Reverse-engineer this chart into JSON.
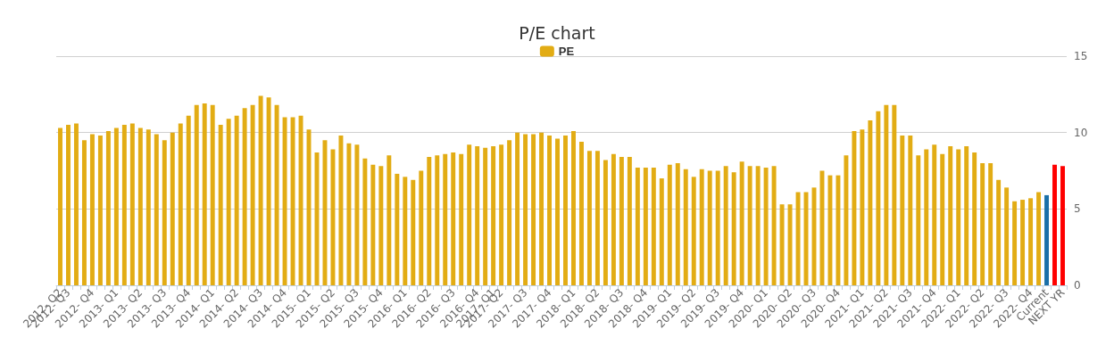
{
  "chart_data": {
    "type": "bar",
    "title": "P/E chart",
    "categories": [
      "2012- Q2",
      "2012- Q3",
      null,
      null,
      "2012- Q4",
      null,
      null,
      "2013- Q1",
      null,
      null,
      "2013- Q2",
      null,
      null,
      "2013- Q3",
      null,
      null,
      "2013- Q4",
      null,
      null,
      "2014- Q1",
      null,
      null,
      "2014- Q2",
      null,
      null,
      "2014- Q3",
      null,
      null,
      "2014- Q4",
      null,
      null,
      "2015- Q1",
      null,
      null,
      "2015- Q2",
      null,
      null,
      "2015- Q3",
      null,
      null,
      "2015- Q4",
      null,
      null,
      "2016- Q1",
      null,
      null,
      "2016- Q2",
      null,
      null,
      "2016- Q3",
      null,
      null,
      "2016- Q4",
      null,
      "2017- Q1",
      "2017- Q2",
      null,
      null,
      "2017- Q3",
      null,
      null,
      "2017- Q4",
      null,
      null,
      "2018- Q1",
      null,
      null,
      "2018- Q2",
      null,
      null,
      "2018- Q3",
      null,
      null,
      "2018- Q4",
      null,
      null,
      "2019- Q1",
      null,
      null,
      "2019- Q2",
      null,
      null,
      "2019- Q3",
      null,
      null,
      "2019- Q4",
      null,
      null,
      "2020- Q1",
      null,
      null,
      "2020- Q2",
      null,
      null,
      "2020- Q3",
      null,
      null,
      "2020- Q4",
      null,
      null,
      "2021- Q1",
      null,
      null,
      "2021- Q2",
      null,
      null,
      "2021- Q3",
      null,
      null,
      "2021- Q4",
      null,
      null,
      "2022- Q1",
      null,
      null,
      "2022- Q2",
      null,
      null,
      "2022- Q3",
      null,
      null,
      "2022- Q4",
      null,
      "Current",
      null,
      "NEXT YR"
    ],
    "series": [
      {
        "name": "PE",
        "color": "#e2ac14",
        "values": [
          10.3,
          10.5,
          10.6,
          9.5,
          9.9,
          9.8,
          10.1,
          10.3,
          10.5,
          10.6,
          10.3,
          10.2,
          9.9,
          9.5,
          10.0,
          10.6,
          11.1,
          11.8,
          11.9,
          11.8,
          10.5,
          10.9,
          11.1,
          11.6,
          11.8,
          12.4,
          12.3,
          11.8,
          11.0,
          11.0,
          11.1,
          10.2,
          8.7,
          9.5,
          8.9,
          9.8,
          9.3,
          9.2,
          8.3,
          7.9,
          7.8,
          8.5,
          7.3,
          7.1,
          6.9,
          7.5,
          8.4,
          8.5,
          8.6,
          8.7,
          8.6,
          9.2,
          9.1,
          9.0,
          9.1,
          9.2,
          9.5,
          10.0,
          9.9,
          9.9,
          10.0,
          9.8,
          9.6,
          9.8,
          10.1,
          9.4,
          8.8,
          8.8,
          8.2,
          8.6,
          8.4,
          8.4,
          7.7,
          7.7,
          7.7,
          7.0,
          7.9,
          8.0,
          7.6,
          7.1,
          7.6,
          7.5,
          7.5,
          7.8,
          7.4,
          8.1,
          7.8,
          7.8,
          7.7,
          7.8,
          5.3,
          5.3,
          6.1,
          6.1,
          6.4,
          7.5,
          7.2,
          7.2,
          8.5,
          10.1,
          10.2,
          10.8,
          11.4,
          11.8,
          11.8,
          9.8,
          9.8,
          8.5,
          8.9,
          9.2,
          8.6,
          9.1,
          8.9,
          9.1,
          8.7,
          8.0,
          8.0,
          6.9,
          6.4,
          5.5,
          5.6,
          5.7,
          6.1,
          5.9,
          7.9,
          7.8
        ],
        "colors": [
          "#e2ac14",
          "#e2ac14",
          "#e2ac14",
          "#e2ac14",
          "#e2ac14",
          "#e2ac14",
          "#e2ac14",
          "#e2ac14",
          "#e2ac14",
          "#e2ac14",
          "#e2ac14",
          "#e2ac14",
          "#e2ac14",
          "#e2ac14",
          "#e2ac14",
          "#e2ac14",
          "#e2ac14",
          "#e2ac14",
          "#e2ac14",
          "#e2ac14",
          "#e2ac14",
          "#e2ac14",
          "#e2ac14",
          "#e2ac14",
          "#e2ac14",
          "#e2ac14",
          "#e2ac14",
          "#e2ac14",
          "#e2ac14",
          "#e2ac14",
          "#e2ac14",
          "#e2ac14",
          "#e2ac14",
          "#e2ac14",
          "#e2ac14",
          "#e2ac14",
          "#e2ac14",
          "#e2ac14",
          "#e2ac14",
          "#e2ac14",
          "#e2ac14",
          "#e2ac14",
          "#e2ac14",
          "#e2ac14",
          "#e2ac14",
          "#e2ac14",
          "#e2ac14",
          "#e2ac14",
          "#e2ac14",
          "#e2ac14",
          "#e2ac14",
          "#e2ac14",
          "#e2ac14",
          "#e2ac14",
          "#e2ac14",
          "#e2ac14",
          "#e2ac14",
          "#e2ac14",
          "#e2ac14",
          "#e2ac14",
          "#e2ac14",
          "#e2ac14",
          "#e2ac14",
          "#e2ac14",
          "#e2ac14",
          "#e2ac14",
          "#e2ac14",
          "#e2ac14",
          "#e2ac14",
          "#e2ac14",
          "#e2ac14",
          "#e2ac14",
          "#e2ac14",
          "#e2ac14",
          "#e2ac14",
          "#e2ac14",
          "#e2ac14",
          "#e2ac14",
          "#e2ac14",
          "#e2ac14",
          "#e2ac14",
          "#e2ac14",
          "#e2ac14",
          "#e2ac14",
          "#e2ac14",
          "#e2ac14",
          "#e2ac14",
          "#e2ac14",
          "#e2ac14",
          "#e2ac14",
          "#e2ac14",
          "#e2ac14",
          "#e2ac14",
          "#e2ac14",
          "#e2ac14",
          "#e2ac14",
          "#e2ac14",
          "#e2ac14",
          "#e2ac14",
          "#e2ac14",
          "#e2ac14",
          "#e2ac14",
          "#e2ac14",
          "#e2ac14",
          "#e2ac14",
          "#e2ac14",
          "#e2ac14",
          "#e2ac14",
          "#e2ac14",
          "#e2ac14",
          "#e2ac14",
          "#e2ac14",
          "#e2ac14",
          "#e2ac14",
          "#e2ac14",
          "#e2ac14",
          "#e2ac14",
          "#e2ac14",
          "#e2ac14",
          "#e2ac14",
          "#e2ac14",
          "#e2ac14",
          "#e2ac14",
          "#1a6fa8",
          "#ff0000",
          "#ff0000"
        ]
      }
    ],
    "ylim": [
      0,
      15
    ],
    "yticks": [
      0,
      5,
      10,
      15
    ],
    "grid": "y",
    "legend": "top"
  }
}
